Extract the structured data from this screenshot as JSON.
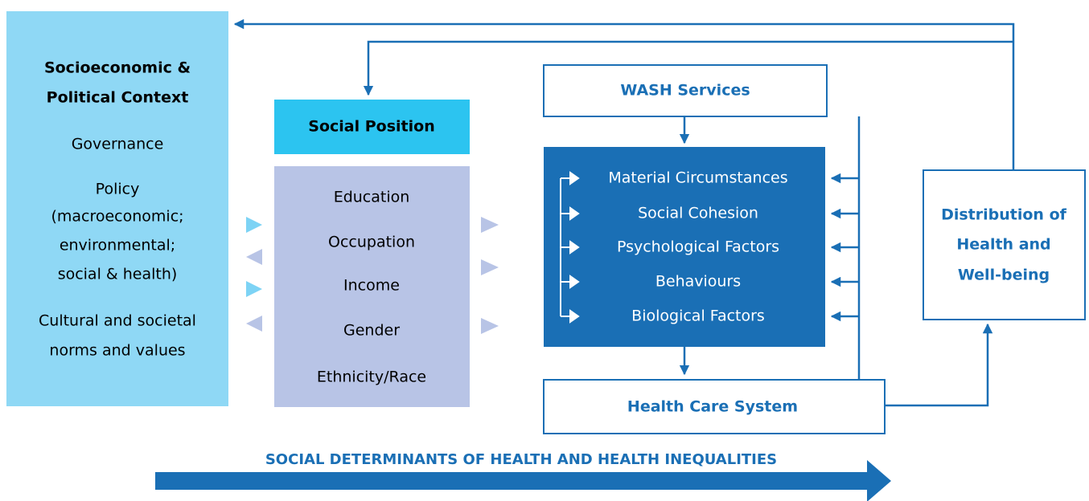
{
  "context": {
    "title": [
      "Socioeconomic &",
      "Political Context"
    ],
    "items": [
      [
        "Governance"
      ],
      [
        "Policy",
        "(macroeconomic;",
        "environmental;",
        "social & health)"
      ],
      [
        "Cultural and societal",
        "norms and values"
      ]
    ]
  },
  "social_position": {
    "title": "Social Position",
    "items": [
      "Education",
      "Occupation",
      "Income",
      "Gender",
      "Ethnicity/Race"
    ]
  },
  "wash": {
    "title": "WASH Services"
  },
  "intermediary": {
    "items": [
      "Material Circumstances",
      "Social Cohesion",
      "Psychological Factors",
      "Behaviours",
      "Biological Factors"
    ]
  },
  "health_care": {
    "title": "Health Care System"
  },
  "distribution": {
    "title": [
      "Distribution of",
      "Health and",
      "Well-being"
    ]
  },
  "footer": {
    "title": "SOCIAL DETERMINANTS OF HEALTH AND HEALTH INEQUALITIES"
  }
}
